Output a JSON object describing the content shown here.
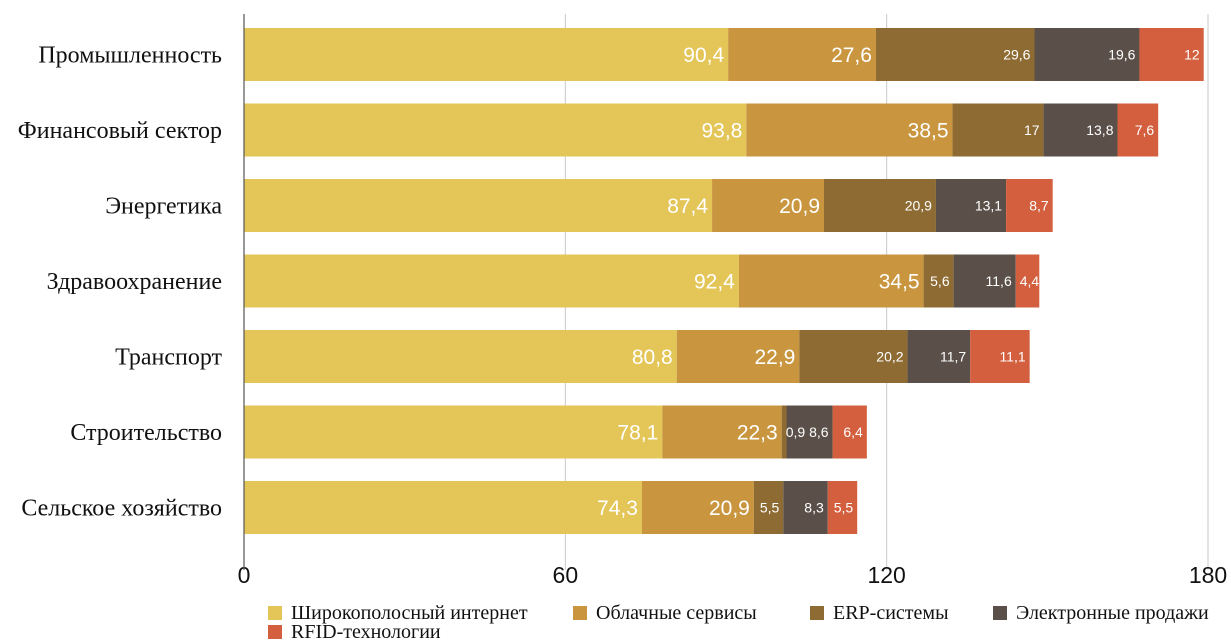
{
  "chart_data": {
    "type": "bar",
    "orientation": "horizontal",
    "stacked": true,
    "categories": [
      "Промышленность",
      "Финансовый сектор",
      "Энергетика",
      "Здравоохранение",
      "Транспорт",
      "Строительство",
      "Сельское хозяйство"
    ],
    "series": [
      {
        "name": "Широкополосный интернет",
        "color": "#E4C558",
        "values": [
          90.4,
          93.8,
          87.4,
          92.4,
          80.8,
          78.1,
          74.3
        ],
        "labels": [
          "90,4",
          "93,8",
          "87,4",
          "92,4",
          "80,8",
          "78,1",
          "74,3"
        ]
      },
      {
        "name": "Облачные сервисы",
        "color": "#C9963F",
        "values": [
          27.6,
          38.5,
          20.9,
          34.5,
          22.9,
          22.3,
          20.9
        ],
        "labels": [
          "27,6",
          "38,5",
          "20,9",
          "34,5",
          "22,9",
          "22,3",
          "20,9"
        ]
      },
      {
        "name": "ERP-системы",
        "color": "#8D6B33",
        "values": [
          29.6,
          17,
          20.9,
          5.6,
          20.2,
          0.9,
          5.5
        ],
        "labels": [
          "29,6",
          "17",
          "20,9",
          "5,6",
          "20,2",
          "0,9",
          "5,5"
        ]
      },
      {
        "name": "Электронные продажи",
        "color": "#5A5049",
        "values": [
          19.6,
          13.8,
          13.1,
          11.6,
          11.7,
          8.6,
          8.3
        ],
        "labels": [
          "19,6",
          "13,8",
          "13,1",
          "11,6",
          "11,7",
          "8,6",
          "8,3"
        ]
      },
      {
        "name": "RFID-технологии",
        "color": "#D35F3E",
        "values": [
          12,
          7.6,
          8.7,
          4.4,
          11.1,
          6.4,
          5.5
        ],
        "labels": [
          "12",
          "7,6",
          "8,7",
          "4,4",
          "11,1",
          "6,4",
          "5,5"
        ]
      }
    ],
    "xlim": [
      0,
      180
    ],
    "xticks": [
      0,
      60,
      120,
      180
    ],
    "grid": true,
    "legend": "bottom"
  }
}
